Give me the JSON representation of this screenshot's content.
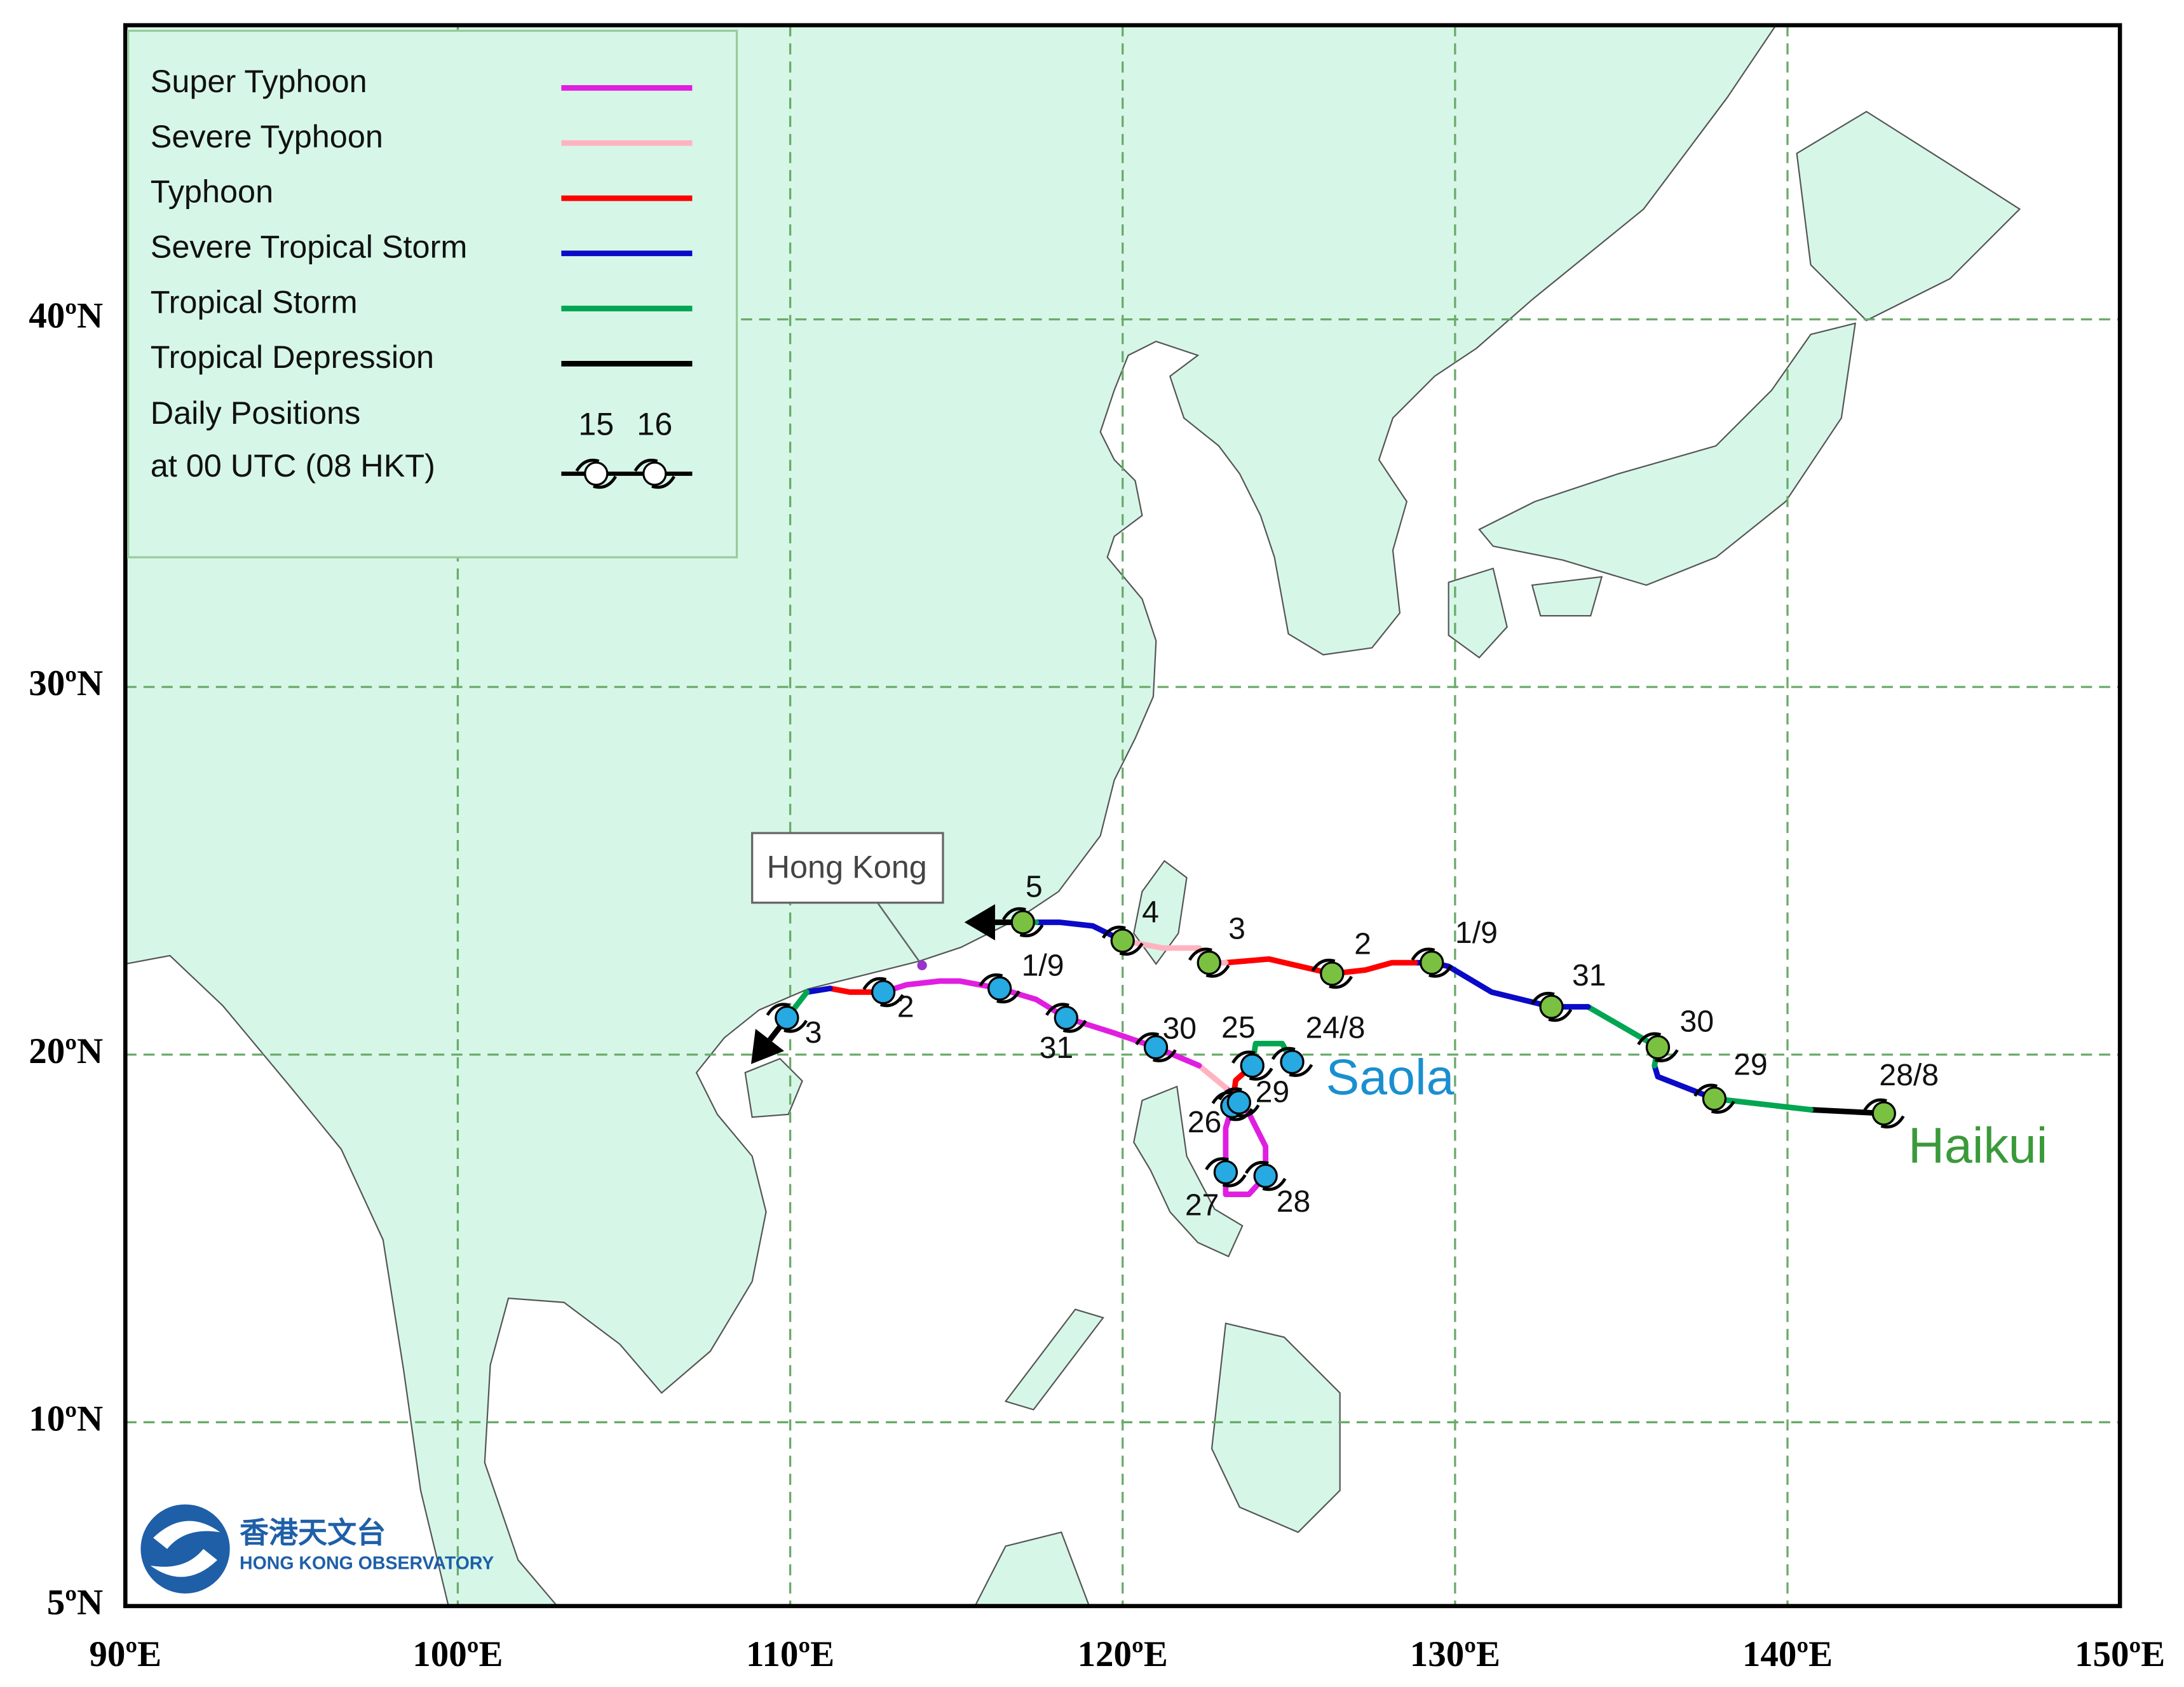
{
  "map": {
    "xlim": [
      90,
      150
    ],
    "xticks": [
      {
        "value": 90,
        "label": "90ºE"
      },
      {
        "value": 100,
        "label": "100ºE"
      },
      {
        "value": 110,
        "label": "110ºE"
      },
      {
        "value": 120,
        "label": "120ºE"
      },
      {
        "value": 130,
        "label": "130ºE"
      },
      {
        "value": 140,
        "label": "140ºE"
      },
      {
        "value": 150,
        "label": "150ºE"
      }
    ],
    "ylim": [
      5,
      48
    ],
    "yticks": [
      {
        "value": 5,
        "label": "5ºN"
      },
      {
        "value": 10,
        "label": "10ºN"
      },
      {
        "value": 20,
        "label": "20ºN"
      },
      {
        "value": 30,
        "label": "30ºN"
      },
      {
        "value": 40,
        "label": "40ºN"
      }
    ],
    "grid": true,
    "legend": {
      "entries": [
        {
          "name": "Super Typhoon",
          "color": "#e01ee0"
        },
        {
          "name": "Severe Typhoon",
          "color": "#ffb3c1"
        },
        {
          "name": "Typhoon",
          "color": "#ff0000"
        },
        {
          "name": "Severe Tropical Storm",
          "color": "#0a0ac8"
        },
        {
          "name": "Tropical Storm",
          "color": "#00a651"
        },
        {
          "name": "Tropical Depression",
          "color": "#000000"
        }
      ],
      "daily_positions": [
        "Daily Positions",
        "at 00 UTC (08 HKT)"
      ],
      "sample_labels": [
        "15",
        "16"
      ]
    },
    "hong_kong": "Hong Kong",
    "logo": {
      "chinese": "香港天文台",
      "english": "HONG KONG OBSERVATORY"
    },
    "storms": [
      {
        "name": "Saola",
        "color": "#1a8fd0",
        "marker_color": "#27a9e1",
        "segments": [
          {
            "color": "#00a651",
            "lon": [
              125.1,
              124.8,
              124.0,
              123.9
            ],
            "lat": [
              19.8,
              20.3,
              20.3,
              19.7
            ]
          },
          {
            "color": "#ff0000",
            "lon": [
              123.9,
              123.4,
              123.3
            ],
            "lat": [
              19.7,
              19.3,
              18.6
            ]
          },
          {
            "color": "#e01ee0",
            "lon": [
              123.3,
              123.1,
              123.1,
              123.1,
              123.8,
              124.3,
              124.3,
              123.8,
              123.5,
              123.1
            ],
            "lat": [
              18.6,
              18.0,
              16.8,
              16.2,
              16.2,
              16.7,
              17.5,
              18.4,
              18.7,
              19.1
            ]
          },
          {
            "color": "#ffb3c1",
            "lon": [
              123.1,
              122.3
            ],
            "lat": [
              19.1,
              19.7
            ]
          },
          {
            "color": "#e01ee0",
            "lon": [
              122.3,
              121.0,
              119.7,
              118.3,
              117.4,
              116.3,
              115.1,
              114.5,
              113.5,
              112.8
            ],
            "lat": [
              19.7,
              20.2,
              20.6,
              21.0,
              21.5,
              21.8,
              22.0,
              22.0,
              21.9,
              21.7
            ]
          },
          {
            "color": "#ff0000",
            "lon": [
              112.8,
              111.8,
              111.2
            ],
            "lat": [
              21.7,
              21.7,
              21.8
            ]
          },
          {
            "color": "#0a0ac8",
            "lon": [
              111.2,
              110.5
            ],
            "lat": [
              21.8,
              21.7
            ]
          },
          {
            "color": "#00a651",
            "lon": [
              110.5,
              109.9
            ],
            "lat": [
              21.7,
              21.0
            ]
          }
        ],
        "positions": [
          {
            "label": "24/8",
            "lon": 125.1,
            "lat": 19.8
          },
          {
            "label": "25",
            "lon": 123.9,
            "lat": 19.7
          },
          {
            "label": "26",
            "lon": 123.3,
            "lat": 18.6
          },
          {
            "label": "27",
            "lon": 123.1,
            "lat": 16.8
          },
          {
            "label": "28",
            "lon": 124.3,
            "lat": 16.7
          },
          {
            "label": "29",
            "lon": 123.5,
            "lat": 18.7
          },
          {
            "label": "30",
            "lon": 121.0,
            "lat": 20.2
          },
          {
            "label": "31",
            "lon": 118.3,
            "lat": 21.0
          },
          {
            "label": "1/9",
            "lon": 116.3,
            "lat": 21.8
          },
          {
            "label": "2",
            "lon": 112.8,
            "lat": 21.7
          },
          {
            "label": "3",
            "lon": 109.9,
            "lat": 21.0
          }
        ]
      },
      {
        "name": "Haikui",
        "color": "#3a9a3a",
        "marker_color": "#7ac142",
        "segments": [
          {
            "color": "#000000",
            "lon": [
              142.9,
              140.7
            ],
            "lat": [
              18.4,
              18.5
            ]
          },
          {
            "color": "#00a651",
            "lon": [
              140.7,
              137.8
            ],
            "lat": [
              18.5,
              18.8
            ]
          },
          {
            "color": "#0a0ac8",
            "lon": [
              137.8,
              136.1,
              136.0
            ],
            "lat": [
              18.8,
              19.4,
              19.7
            ]
          },
          {
            "color": "#00a651",
            "lon": [
              136.0,
              136.1,
              134.0
            ],
            "lat": [
              19.7,
              20.2,
              21.3
            ]
          },
          {
            "color": "#0a0ac8",
            "lon": [
              134.0,
              133.4,
              132.9,
              131.1,
              129.8,
              129.3,
              128.8
            ],
            "lat": [
              21.3,
              21.3,
              21.3,
              21.7,
              22.4,
              22.5,
              22.5
            ]
          },
          {
            "color": "#ff0000",
            "lon": [
              128.8,
              128.1,
              127.3,
              126.3,
              124.4,
              123.1
            ],
            "lat": [
              22.5,
              22.5,
              22.3,
              22.2,
              22.6,
              22.5
            ]
          },
          {
            "color": "#ffb3c1",
            "lon": [
              123.1,
              122.6,
              122.3,
              121.2,
              120.0
            ],
            "lat": [
              22.5,
              22.5,
              22.9,
              22.9,
              23.1
            ]
          },
          {
            "color": "#0a0ac8",
            "lon": [
              120.0,
              119.1,
              118.1,
              117.4
            ],
            "lat": [
              23.1,
              23.5,
              23.6,
              23.6
            ]
          },
          {
            "color": "#00a651",
            "lon": [
              117.4,
              117.0
            ],
            "lat": [
              23.6,
              23.6
            ]
          }
        ],
        "positions": [
          {
            "label": "28/8",
            "lon": 142.9,
            "lat": 18.4
          },
          {
            "label": "29",
            "lon": 137.8,
            "lat": 18.8
          },
          {
            "label": "30",
            "lon": 136.1,
            "lat": 20.2
          },
          {
            "label": "31",
            "lon": 132.9,
            "lat": 21.3
          },
          {
            "label": "1/9",
            "lon": 129.3,
            "lat": 22.5
          },
          {
            "label": "2",
            "lon": 126.3,
            "lat": 22.2
          },
          {
            "label": "3",
            "lon": 122.6,
            "lat": 22.5
          },
          {
            "label": "4",
            "lon": 120.0,
            "lat": 23.1
          },
          {
            "label": "5",
            "lon": 117.0,
            "lat": 23.6
          }
        ]
      }
    ]
  }
}
